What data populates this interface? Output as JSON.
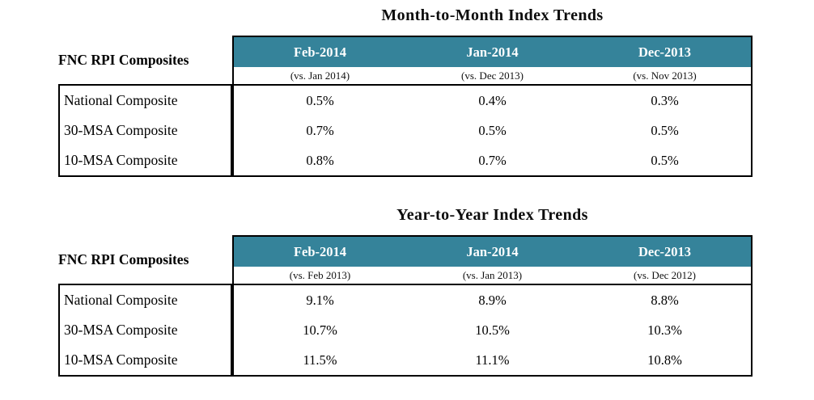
{
  "colors": {
    "header_bg": "#35839A",
    "header_text": "#FFFFFF",
    "border": "#000000",
    "text": "#000000"
  },
  "chart_data": [
    {
      "type": "table",
      "title": "Month-to-Month Index Trends",
      "row_header": "FNC RPI Composites",
      "columns": [
        "Feb-2014",
        "Jan-2014",
        "Dec-2013"
      ],
      "column_sublabels": [
        "(vs. Jan 2014)",
        "(vs. Dec 2013)",
        "(vs. Nov 2013)"
      ],
      "rows": [
        {
          "label": "National Composite",
          "values": [
            "0.5%",
            "0.4%",
            "0.3%"
          ]
        },
        {
          "label": "30-MSA Composite",
          "values": [
            "0.7%",
            "0.5%",
            "0.5%"
          ]
        },
        {
          "label": "10-MSA Composite",
          "values": [
            "0.8%",
            "0.7%",
            "0.5%"
          ]
        }
      ]
    },
    {
      "type": "table",
      "title": "Year-to-Year Index Trends",
      "row_header": "FNC RPI Composites",
      "columns": [
        "Feb-2014",
        "Jan-2014",
        "Dec-2013"
      ],
      "column_sublabels": [
        "(vs. Feb 2013)",
        "(vs. Jan 2013)",
        "(vs. Dec 2012)"
      ],
      "rows": [
        {
          "label": "National Composite",
          "values": [
            "9.1%",
            "8.9%",
            "8.8%"
          ]
        },
        {
          "label": "30-MSA Composite",
          "values": [
            "10.7%",
            "10.5%",
            "10.3%"
          ]
        },
        {
          "label": "10-MSA Composite",
          "values": [
            "11.5%",
            "11.1%",
            "10.8%"
          ]
        }
      ]
    }
  ]
}
